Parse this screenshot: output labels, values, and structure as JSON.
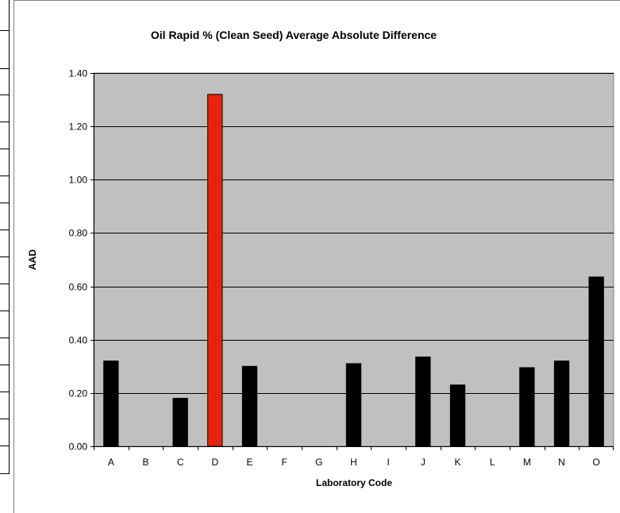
{
  "chart_data": {
    "type": "bar",
    "title": "Oil Rapid % (Clean Seed) Average Absolute Difference",
    "xlabel": "Laboratory Code",
    "ylabel": "AAD",
    "ylim": [
      0,
      1.4
    ],
    "yticks": [
      "0.00",
      "0.20",
      "0.40",
      "0.60",
      "0.80",
      "1.00",
      "1.20",
      "1.40"
    ],
    "categories": [
      "A",
      "B",
      "C",
      "D",
      "E",
      "F",
      "G",
      "H",
      "I",
      "J",
      "K",
      "L",
      "M",
      "N",
      "O"
    ],
    "values": [
      0.32,
      null,
      0.18,
      1.32,
      0.3,
      null,
      null,
      0.31,
      null,
      0.335,
      0.23,
      null,
      0.295,
      0.32,
      0.635
    ],
    "highlight_category": "D",
    "grid": true,
    "legend": "none",
    "colors": {
      "bar": "#000000",
      "highlight": "#e8230c",
      "plot_background": "#c0c0c0",
      "gridline": "#000000"
    }
  }
}
